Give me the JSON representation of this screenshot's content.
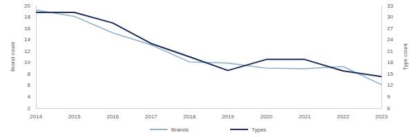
{
  "chart_data": {
    "type": "line",
    "categories": [
      "2014",
      "2015",
      "2016",
      "2017",
      "2018",
      "2019",
      "2020",
      "2021",
      "2022",
      "2023"
    ],
    "y_label": "Brand count",
    "y2_label": "Type count",
    "series": [
      {
        "name": "Brands",
        "color": "#8fb3cc",
        "values": [
          19.2,
          18.1,
          15.2,
          13.1,
          10.1,
          9.9,
          9.0,
          8.9,
          9.3,
          6.1
        ]
      },
      {
        "name": "Types",
        "color": "#1c2b5a",
        "axis": "y2",
        "values": [
          31.2,
          31.2,
          28.4,
          23.0,
          19.5,
          15.9,
          18.8,
          18.8,
          15.8,
          14.3
        ]
      }
    ],
    "ylim": [
      2,
      20
    ],
    "yticks": [
      2,
      4,
      6,
      8,
      10,
      12,
      14,
      16,
      18,
      20
    ],
    "y2lim": [
      6,
      33
    ],
    "y2ticks": [
      6,
      9,
      12,
      15,
      18,
      21,
      24,
      27,
      30,
      33
    ],
    "grid": false,
    "legend": "bottom"
  }
}
